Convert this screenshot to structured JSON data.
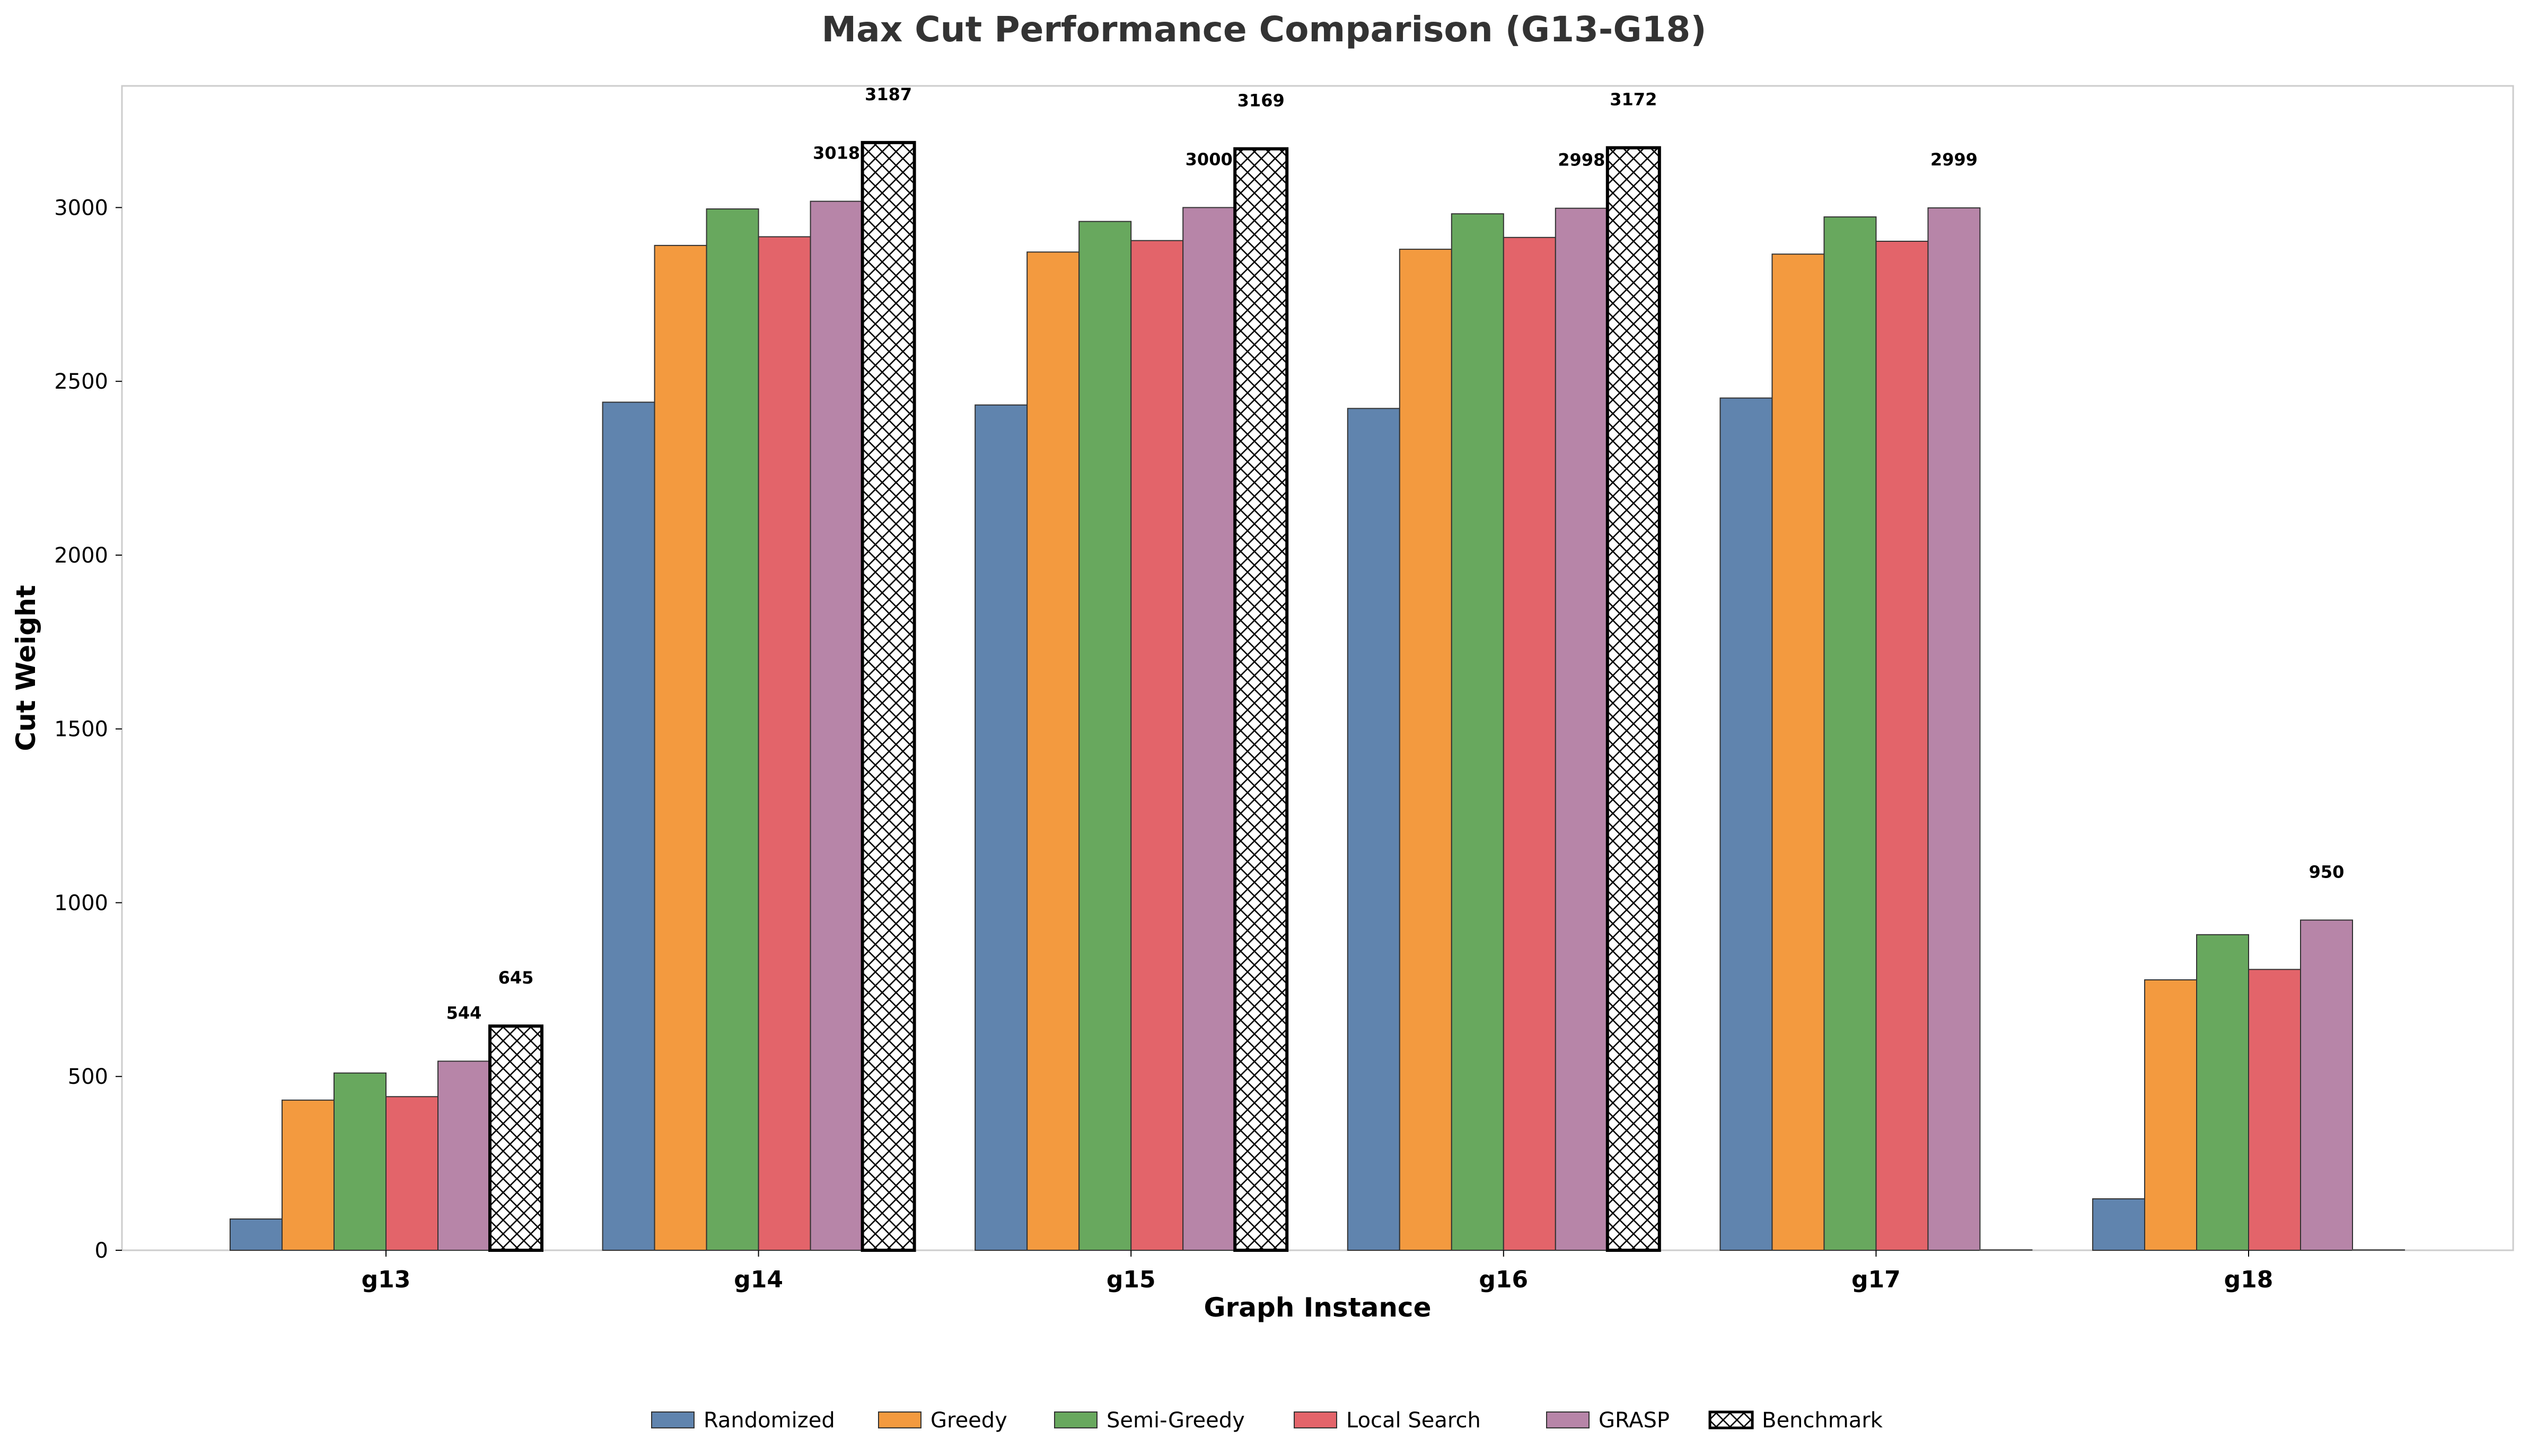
{
  "chart_data": {
    "type": "bar",
    "title": "Max Cut Performance Comparison (G13-G18)",
    "xlabel": "Graph Instance",
    "ylabel": "Cut Weight",
    "ylim": [
      0,
      3350
    ],
    "yticks": [
      0,
      500,
      1000,
      1500,
      2000,
      2500,
      3000
    ],
    "grid": false,
    "legend_position": "bottom-center",
    "categories": [
      "g13",
      "g14",
      "g15",
      "g16",
      "g17",
      "g18"
    ],
    "series": [
      {
        "name": "Randomized",
        "color": "#6084ae",
        "hatch": false,
        "values": [
          90,
          2440,
          2432,
          2422,
          2452,
          148
        ]
      },
      {
        "name": "Greedy",
        "color": "#f39a3f",
        "hatch": false,
        "values": [
          432,
          2891,
          2872,
          2880,
          2866,
          778
        ]
      },
      {
        "name": "Semi-Greedy",
        "color": "#68a85e",
        "hatch": false,
        "values": [
          510,
          2996,
          2960,
          2982,
          2973,
          908
        ]
      },
      {
        "name": "Local Search",
        "color": "#e3646a",
        "hatch": false,
        "values": [
          442,
          2916,
          2905,
          2914,
          2903,
          808
        ]
      },
      {
        "name": "GRASP",
        "color": "#b785a8",
        "hatch": false,
        "values": [
          544,
          3018,
          3000,
          2998,
          2999,
          950
        ]
      },
      {
        "name": "Benchmark",
        "color": "#ffffff",
        "hatch": true,
        "values": [
          645,
          3187,
          3169,
          3172,
          0,
          0
        ]
      }
    ],
    "annotations": [
      {
        "category": "g13",
        "series": "GRASP",
        "text": "544"
      },
      {
        "category": "g13",
        "series": "Benchmark",
        "text": "645"
      },
      {
        "category": "g14",
        "series": "GRASP",
        "text": "3018"
      },
      {
        "category": "g14",
        "series": "Benchmark",
        "text": "3187"
      },
      {
        "category": "g15",
        "series": "GRASP",
        "text": "3000"
      },
      {
        "category": "g15",
        "series": "Benchmark",
        "text": "3169"
      },
      {
        "category": "g16",
        "series": "GRASP",
        "text": "2998"
      },
      {
        "category": "g16",
        "series": "Benchmark",
        "text": "3172"
      },
      {
        "category": "g17",
        "series": "GRASP",
        "text": "2999"
      },
      {
        "category": "g18",
        "series": "GRASP",
        "text": "950"
      }
    ]
  }
}
